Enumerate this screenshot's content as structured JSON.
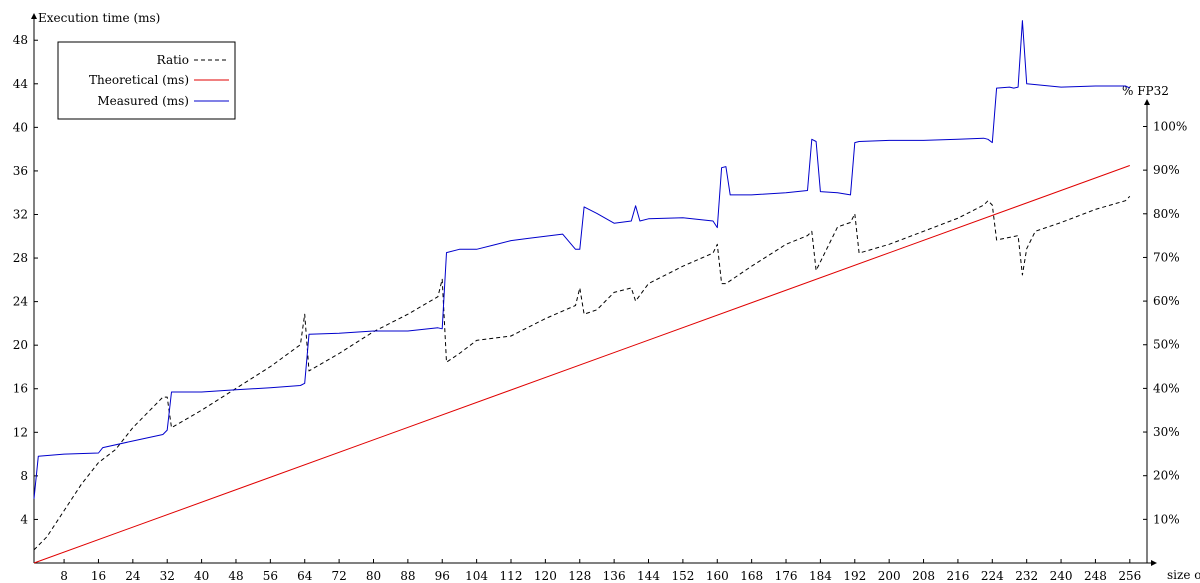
{
  "chart_data": {
    "type": "line",
    "title": "",
    "xlabel": "size of m",
    "ylabel": "Execution time (ms)",
    "y2label": "% FP32",
    "xlim": [
      1,
      260
    ],
    "ylim": [
      0,
      50.5
    ],
    "y2lim": [
      0,
      1.26
    ],
    "x_ticks": [
      8,
      16,
      24,
      32,
      40,
      48,
      56,
      64,
      72,
      80,
      88,
      96,
      104,
      112,
      120,
      128,
      136,
      144,
      152,
      160,
      168,
      176,
      184,
      192,
      200,
      208,
      216,
      224,
      232,
      240,
      248,
      256
    ],
    "y_ticks": [
      4,
      8,
      12,
      16,
      20,
      24,
      28,
      32,
      36,
      40,
      44,
      48
    ],
    "y2_ticks": [
      0.1,
      0.2,
      0.3,
      0.4,
      0.5,
      0.6,
      0.7,
      0.8,
      0.9,
      1.0
    ],
    "y2_tick_labels": [
      "10%",
      "20%",
      "30%",
      "40%",
      "50%",
      "60%",
      "70%",
      "80%",
      "90%",
      "100%"
    ],
    "legend": {
      "position": "top-left",
      "entries": [
        "Ratio",
        "Theoretical (ms)",
        "Measured (ms)"
      ]
    },
    "grid": false,
    "series": [
      {
        "name": "Ratio",
        "axis": "right",
        "color": "#000000",
        "style": "dashed",
        "x": [
          1,
          4,
          8,
          12,
          16,
          20,
          24,
          28,
          31,
          32,
          33,
          40,
          48,
          56,
          63,
          64,
          65,
          72,
          80,
          88,
          95,
          96,
          97,
          100,
          104,
          112,
          120,
          127,
          128,
          129,
          132,
          136,
          140,
          141,
          144,
          152,
          159,
          160,
          161,
          162,
          168,
          176,
          181,
          182,
          183,
          188,
          191,
          192,
          193,
          200,
          208,
          216,
          222,
          223,
          224,
          225,
          230,
          231,
          232,
          234,
          240,
          248,
          255,
          256
        ],
        "y": [
          0.03,
          0.06,
          0.12,
          0.18,
          0.23,
          0.26,
          0.31,
          0.35,
          0.38,
          0.38,
          0.31,
          0.35,
          0.4,
          0.45,
          0.5,
          0.57,
          0.44,
          0.48,
          0.53,
          0.57,
          0.61,
          0.65,
          0.46,
          0.48,
          0.51,
          0.52,
          0.56,
          0.59,
          0.63,
          0.57,
          0.58,
          0.62,
          0.63,
          0.6,
          0.64,
          0.68,
          0.71,
          0.73,
          0.64,
          0.64,
          0.68,
          0.73,
          0.75,
          0.76,
          0.67,
          0.77,
          0.78,
          0.8,
          0.71,
          0.73,
          0.76,
          0.79,
          0.82,
          0.83,
          0.82,
          0.74,
          0.75,
          0.66,
          0.72,
          0.76,
          0.78,
          0.81,
          0.83,
          0.84
        ]
      },
      {
        "name": "Theoretical (ms)",
        "axis": "left",
        "color": "#e00000",
        "style": "solid",
        "x": [
          1,
          256
        ],
        "y": [
          0.0,
          36.5
        ]
      },
      {
        "name": "Measured (ms)",
        "axis": "left",
        "color": "#0000cc",
        "style": "solid",
        "x": [
          1,
          2,
          8,
          16,
          17,
          24,
          31,
          32,
          33,
          40,
          48,
          56,
          63,
          64,
          65,
          72,
          80,
          88,
          95,
          96,
          97,
          100,
          104,
          108,
          112,
          116,
          120,
          124,
          127,
          128,
          129,
          132,
          136,
          140,
          141,
          142,
          144,
          152,
          159,
          160,
          161,
          162,
          163,
          168,
          176,
          181,
          182,
          183,
          184,
          188,
          191,
          192,
          193,
          200,
          208,
          216,
          222,
          223,
          224,
          225,
          228,
          229,
          230,
          231,
          232,
          240,
          248,
          255,
          256
        ],
        "y": [
          5.9,
          9.8,
          10.0,
          10.1,
          10.6,
          11.2,
          11.8,
          12.2,
          15.7,
          15.7,
          15.9,
          16.1,
          16.3,
          16.5,
          21.0,
          21.1,
          21.3,
          21.3,
          21.6,
          21.5,
          28.5,
          28.8,
          28.8,
          29.2,
          29.6,
          29.8,
          30.0,
          30.2,
          28.8,
          28.8,
          32.7,
          32.1,
          31.2,
          31.4,
          32.8,
          31.4,
          31.6,
          31.7,
          31.4,
          30.8,
          36.3,
          36.4,
          33.8,
          33.8,
          34.0,
          34.2,
          38.9,
          38.7,
          34.1,
          34.0,
          33.8,
          38.6,
          38.7,
          38.8,
          38.8,
          38.9,
          39.0,
          38.9,
          38.6,
          43.6,
          43.7,
          43.6,
          43.7,
          49.8,
          44.0,
          43.7,
          43.8,
          43.8,
          43.6
        ]
      }
    ]
  }
}
